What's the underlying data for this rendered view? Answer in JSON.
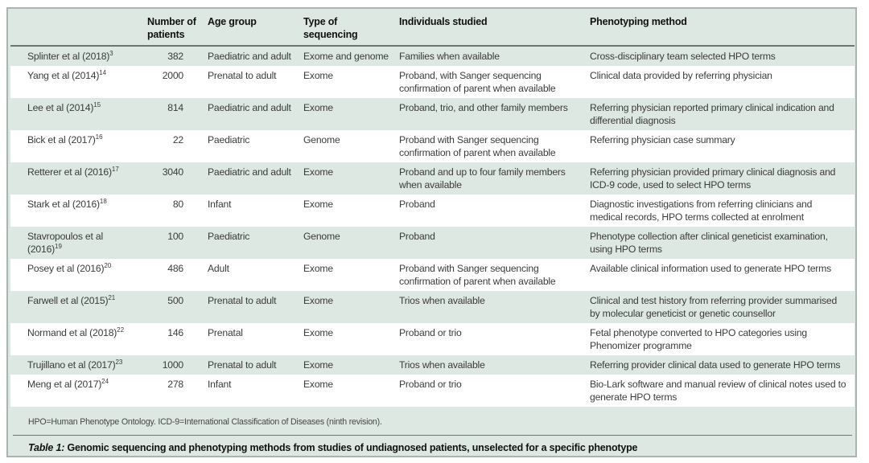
{
  "table": {
    "headers": [
      "",
      "Number of patients",
      "Age group",
      "Type of sequencing",
      "Individuals studied",
      "Phenotyping method"
    ],
    "rows": [
      {
        "study": "Splinter et al (2018)",
        "ref": "3",
        "patients": "382",
        "age_group": "Paediatric and adult",
        "sequencing": "Exome and genome",
        "individuals": "Families when available",
        "phenotyping": "Cross-disciplinary team selected HPO terms"
      },
      {
        "study": "Yang et al (2014)",
        "ref": "14",
        "patients": "2000",
        "age_group": "Prenatal to adult",
        "sequencing": "Exome",
        "individuals": "Proband, with Sanger sequencing confirmation of parent when available",
        "phenotyping": "Clinical data provided by referring physician"
      },
      {
        "study": "Lee et al (2014)",
        "ref": "15",
        "patients": "814",
        "age_group": "Paediatric and adult",
        "sequencing": "Exome",
        "individuals": "Proband, trio, and other family members",
        "phenotyping": "Referring physician reported primary clinical indication and differential diagnosis"
      },
      {
        "study": "Bick et al (2017)",
        "ref": "16",
        "patients": "22",
        "age_group": "Paediatric",
        "sequencing": "Genome",
        "individuals": "Proband with Sanger sequencing confirmation of parent when available",
        "phenotyping": "Referring physician case summary"
      },
      {
        "study": "Retterer et al (2016)",
        "ref": "17",
        "patients": "3040",
        "age_group": "Paediatric and adult",
        "sequencing": "Exome",
        "individuals": "Proband and up to four family members when available",
        "phenotyping": "Referring physician provided primary clinical diagnosis and ICD-9 code, used to select HPO terms"
      },
      {
        "study": "Stark et al (2016)",
        "ref": "18",
        "patients": "80",
        "age_group": "Infant",
        "sequencing": "Exome",
        "individuals": "Proband",
        "phenotyping": "Diagnostic investigations from referring clinicians and medical records, HPO terms collected at enrolment"
      },
      {
        "study": "Stavropoulos et al (2016)",
        "ref": "19",
        "patients": "100",
        "age_group": "Paediatric",
        "sequencing": "Genome",
        "individuals": "Proband",
        "phenotyping": "Phenotype collection after clinical geneticist examination, using HPO terms"
      },
      {
        "study": "Posey et al (2016)",
        "ref": "20",
        "patients": "486",
        "age_group": "Adult",
        "sequencing": "Exome",
        "individuals": "Proband with Sanger sequencing confirmation of parent when available",
        "phenotyping": "Available clinical information used to generate HPO terms"
      },
      {
        "study": "Farwell et al (2015)",
        "ref": "21",
        "patients": "500",
        "age_group": "Prenatal to adult",
        "sequencing": "Exome",
        "individuals": "Trios when available",
        "phenotyping": "Clinical and test history from referring provider summarised by molecular geneticist or genetic counsellor"
      },
      {
        "study": "Normand et al (2018)",
        "ref": "22",
        "patients": "146",
        "age_group": "Prenatal",
        "sequencing": "Exome",
        "individuals": "Proband or trio",
        "phenotyping": "Fetal phenotype converted to HPO categories using Phenomizer programme"
      },
      {
        "study": "Trujillano et al (2017)",
        "ref": "23",
        "patients": "1000",
        "age_group": "Prenatal to adult",
        "sequencing": "Exome",
        "individuals": "Trios when available",
        "phenotyping": "Referring provider clinical data used to generate HPO terms"
      },
      {
        "study": "Meng et al (2017)",
        "ref": "24",
        "patients": "278",
        "age_group": "Infant",
        "sequencing": "Exome",
        "individuals": "Proband or trio",
        "phenotyping": "Bio-Lark software and manual review of clinical notes used to generate HPO terms"
      }
    ]
  },
  "footnote": "HPO=Human Phenotype Ontology. ICD-9=International Classification of Diseases (ninth revision).",
  "caption": {
    "label": "Table 1:",
    "text": " Genomic sequencing and phenotyping methods from studies of undiagnosed patients, unselected for a specific phenotype"
  },
  "colors": {
    "table_background": "#dce8e1",
    "row_stripe": "#ffffff",
    "rule": "#68776f",
    "frame_border": "#aab5af",
    "body_text": "#3b3b3b",
    "header_text": "#111111"
  }
}
